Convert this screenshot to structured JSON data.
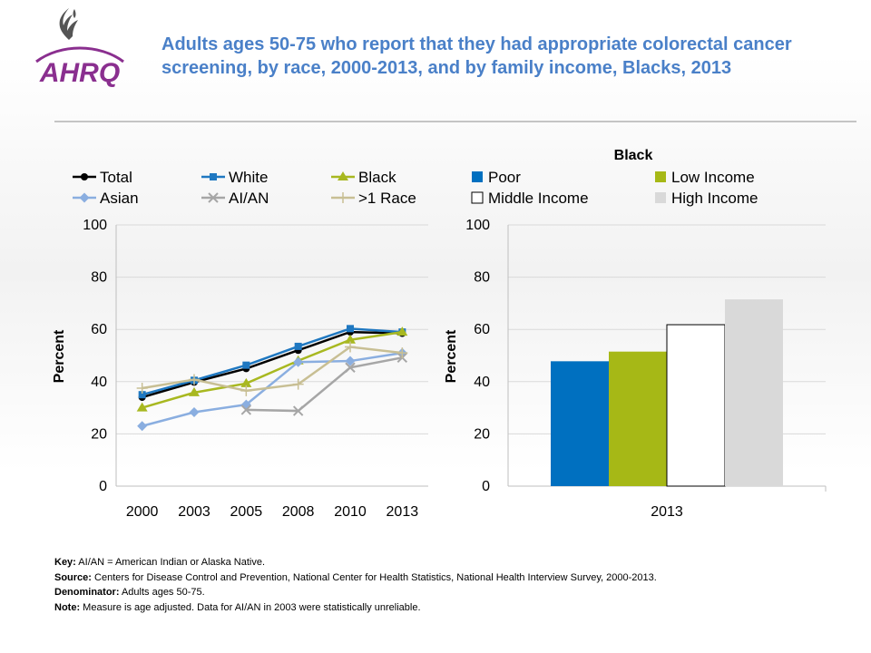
{
  "header": {
    "title": "Adults ages 50-75 who report that they had appropriate colorectal cancer screening, by race, 2000-2013, and by family income, Blacks, 2013",
    "logo_text": "AHRQ"
  },
  "chart_data": [
    {
      "type": "line",
      "x": [
        "2000",
        "2003",
        "2005",
        "2008",
        "2010",
        "2013"
      ],
      "ylabel": "Percent",
      "ylim": [
        0,
        100
      ],
      "yticks": [
        0,
        20,
        40,
        60,
        80,
        100
      ],
      "grid": "horizontal",
      "legend_position": "top",
      "series": [
        {
          "name": "Total",
          "color": "#000000",
          "marker": "circle",
          "values": [
            34,
            39.8,
            45,
            52,
            59,
            58.5
          ]
        },
        {
          "name": "White",
          "color": "#1f78c1",
          "marker": "square",
          "values": [
            35,
            40.5,
            46.3,
            53.5,
            60.3,
            59
          ]
        },
        {
          "name": "Black",
          "color": "#a8b820",
          "marker": "triangle",
          "values": [
            30,
            35.8,
            39.3,
            48,
            56,
            59
          ]
        },
        {
          "name": "Asian",
          "color": "#8aaee0",
          "marker": "diamond",
          "values": [
            23,
            28.3,
            31.2,
            47.5,
            47.9,
            51
          ]
        },
        {
          "name": "AI/AN",
          "color": "#a6a6a6",
          "marker": "x",
          "values": [
            null,
            null,
            29.2,
            28.8,
            45.4,
            49.2
          ]
        },
        {
          "name": ">1 Race",
          "color": "#c8bf94",
          "marker": "plus",
          "values": [
            37.5,
            40.8,
            36.5,
            39,
            53.3,
            51
          ]
        }
      ]
    },
    {
      "type": "bar",
      "title": "Black",
      "categories": [
        "2013"
      ],
      "ylabel": "Percent",
      "ylim": [
        0,
        100
      ],
      "yticks": [
        0,
        20,
        40,
        60,
        80,
        100
      ],
      "grid": "horizontal",
      "legend_position": "top",
      "series": [
        {
          "name": "Poor",
          "color": "#0070c0",
          "values": [
            47.8
          ]
        },
        {
          "name": "Low Income",
          "color": "#a6b816",
          "values": [
            51.5
          ]
        },
        {
          "name": "Middle Income",
          "color": "#ffffff",
          "values": [
            61.8
          ]
        },
        {
          "name": "High Income",
          "color": "#d9d9d9",
          "values": [
            71.5
          ]
        }
      ]
    }
  ],
  "footnotes": {
    "key_label": "Key:",
    "key_text": "AI/AN = American Indian or Alaska Native.",
    "source_label": "Source:",
    "source_text": "Centers for Disease Control and Prevention, National Center for Health Statistics, National Health Interview Survey, 2000-2013.",
    "denominator_label": "Denominator:",
    "denominator_text": "Adults ages 50-75.",
    "note_label": "Note:",
    "note_text": "Measure is age adjusted. Data for AI/AN in 2003 were statistically unreliable."
  }
}
